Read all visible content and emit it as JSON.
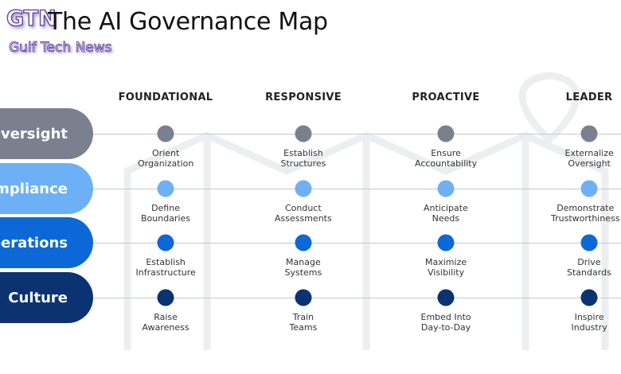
{
  "title": "The AI Governance Map",
  "watermark": {
    "logo": "GTN",
    "name": "Gulf Tech News"
  },
  "columns": [
    "FOUNDATIONAL",
    "RESPONSIVE",
    "PROACTIVE",
    "LEADER"
  ],
  "rows": [
    {
      "label": "Oversight",
      "color": "#7a808e",
      "dot": "#7a808e",
      "items": [
        [
          "Orient",
          "Organization"
        ],
        [
          "Establish",
          "Structures"
        ],
        [
          "Ensure",
          "Accountability"
        ],
        [
          "Externalize",
          "Oversight"
        ]
      ]
    },
    {
      "label": "Compliance",
      "color": "#6db0f6",
      "dot": "#6db0f6",
      "items": [
        [
          "Define",
          "Boundaries"
        ],
        [
          "Conduct",
          "Assessments"
        ],
        [
          "Anticipate",
          "Needs"
        ],
        [
          "Demonstrate",
          "Trustworthiness"
        ]
      ]
    },
    {
      "label": "Operations",
      "color": "#0b68d6",
      "dot": "#0b68d6",
      "items": [
        [
          "Establish",
          "Infrastructure"
        ],
        [
          "Manage",
          "Systems"
        ],
        [
          "Maximize",
          "Visibility"
        ],
        [
          "Drive",
          "Standards"
        ]
      ]
    },
    {
      "label": "Culture",
      "color": "#0b3371",
      "dot": "#0b3371",
      "items": [
        [
          "Raise",
          "Awareness"
        ],
        [
          "Train",
          "Teams"
        ],
        [
          "Embed Into",
          "Day-to-Day"
        ],
        [
          "Inspire",
          "Industry"
        ]
      ]
    }
  ]
}
